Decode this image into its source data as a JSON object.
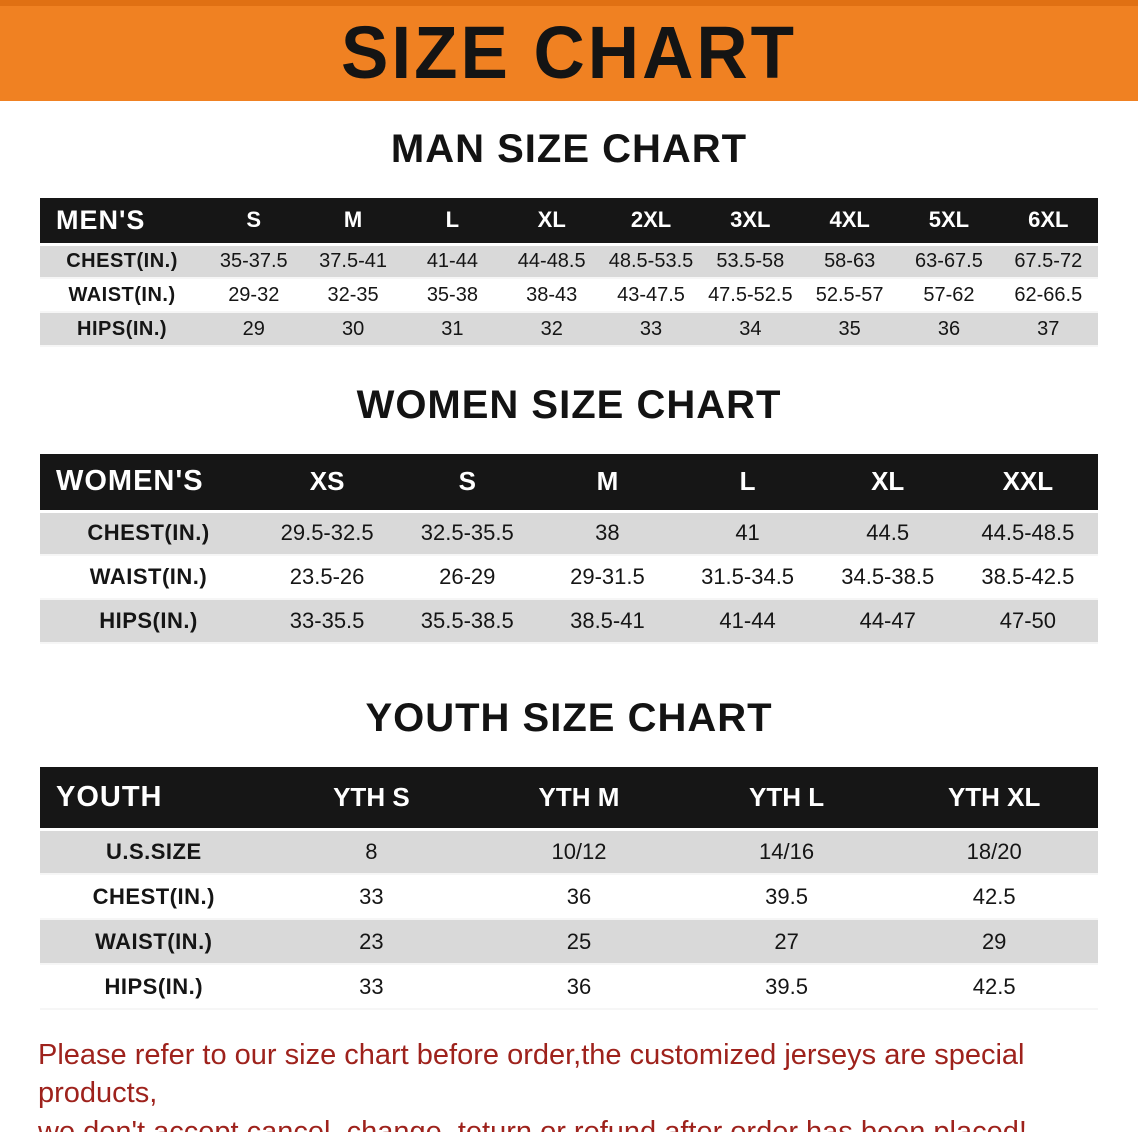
{
  "banner": {
    "title": "SIZE CHART",
    "background": "#f08122",
    "border_color": "#e07013"
  },
  "sections": [
    {
      "heading": "MAN SIZE CHART",
      "table": {
        "corner_label": "MEN'S",
        "columns": [
          "S",
          "M",
          "L",
          "XL",
          "2XL",
          "3XL",
          "4XL",
          "5XL",
          "6XL"
        ],
        "rows": [
          {
            "label": "CHEST(IN.)",
            "values": [
              "35-37.5",
              "37.5-41",
              "41-44",
              "44-48.5",
              "48.5-53.5",
              "53.5-58",
              "58-63",
              "63-67.5",
              "67.5-72"
            ]
          },
          {
            "label": "WAIST(IN.)",
            "values": [
              "29-32",
              "32-35",
              "35-38",
              "38-43",
              "43-47.5",
              "47.5-52.5",
              "52.5-57",
              "57-62",
              "62-66.5"
            ]
          },
          {
            "label": "HIPS(IN.)",
            "values": [
              "29",
              "30",
              "31",
              "32",
              "33",
              "34",
              "35",
              "36",
              "37"
            ]
          }
        ]
      }
    },
    {
      "heading": "WOMEN SIZE CHART",
      "table": {
        "corner_label": "WOMEN'S",
        "columns": [
          "XS",
          "S",
          "M",
          "L",
          "XL",
          "XXL"
        ],
        "rows": [
          {
            "label": "CHEST(IN.)",
            "values": [
              "29.5-32.5",
              "32.5-35.5",
              "38",
              "41",
              "44.5",
              "44.5-48.5"
            ]
          },
          {
            "label": "WAIST(IN.)",
            "values": [
              "23.5-26",
              "26-29",
              "29-31.5",
              "31.5-34.5",
              "34.5-38.5",
              "38.5-42.5"
            ]
          },
          {
            "label": "HIPS(IN.)",
            "values": [
              "33-35.5",
              "35.5-38.5",
              "38.5-41",
              "41-44",
              "44-47",
              "47-50"
            ]
          }
        ]
      }
    },
    {
      "heading": "YOUTH SIZE CHART",
      "table": {
        "corner_label": "YOUTH",
        "columns": [
          "YTH S",
          "YTH M",
          "YTH L",
          "YTH XL"
        ],
        "rows": [
          {
            "label": "U.S.SIZE",
            "values": [
              "8",
              "10/12",
              "14/16",
              "18/20"
            ]
          },
          {
            "label": "CHEST(IN.)",
            "values": [
              "33",
              "36",
              "39.5",
              "42.5"
            ]
          },
          {
            "label": "WAIST(IN.)",
            "values": [
              "23",
              "25",
              "27",
              "29"
            ]
          },
          {
            "label": "HIPS(IN.)",
            "values": [
              "33",
              "36",
              "39.5",
              "42.5"
            ]
          }
        ]
      }
    }
  ],
  "disclaimer": {
    "line1": "Please refer to our size chart before order,the customized jerseys are special products,",
    "line2": "we don't accept cancel, change, teturn or refund after order has been placed!",
    "color": "#9e221c"
  },
  "table_colors": {
    "header_bg": "#161616",
    "header_text": "#ffffff",
    "stripe_row_bg": "#d9d9d9",
    "plain_row_bg": "#ffffff"
  }
}
